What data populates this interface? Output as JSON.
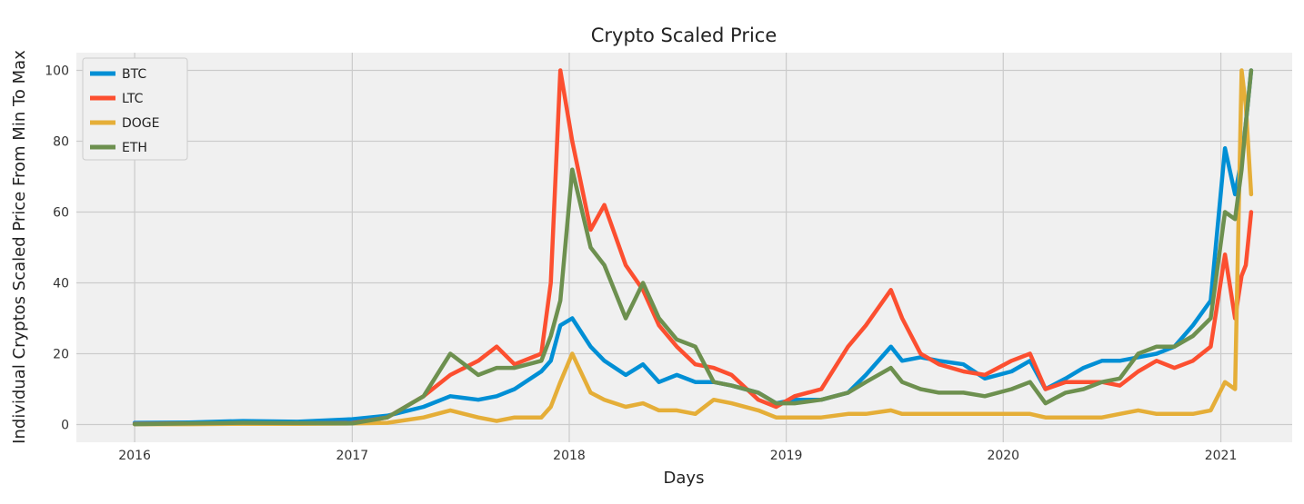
{
  "chart_data": {
    "type": "line",
    "title": "Crypto Scaled Price",
    "xlabel": "Days",
    "ylabel": "Individual Cryptos Scaled Price From Min To Max",
    "x_tick_labels": [
      "2016",
      "2017",
      "2018",
      "2019",
      "2020",
      "2021"
    ],
    "y_ticks": [
      0,
      20,
      40,
      60,
      80,
      100
    ],
    "xlim": [
      "2015-09-25",
      "2021-05-01"
    ],
    "ylim": [
      -5,
      105
    ],
    "grid": true,
    "legend_position": "top-left",
    "x": [
      "2016-01-01",
      "2016-04-01",
      "2016-07-01",
      "2016-10-01",
      "2017-01-01",
      "2017-03-01",
      "2017-05-01",
      "2017-06-15",
      "2017-08-01",
      "2017-09-01",
      "2017-10-01",
      "2017-11-15",
      "2017-12-01",
      "2017-12-17",
      "2018-01-06",
      "2018-02-06",
      "2018-03-01",
      "2018-04-06",
      "2018-05-05",
      "2018-06-01",
      "2018-07-01",
      "2018-08-01",
      "2018-09-01",
      "2018-10-01",
      "2018-11-15",
      "2018-12-15",
      "2019-01-15",
      "2019-03-01",
      "2019-04-15",
      "2019-05-15",
      "2019-06-26",
      "2019-07-15",
      "2019-08-15",
      "2019-09-15",
      "2019-10-26",
      "2019-12-01",
      "2020-01-15",
      "2020-02-15",
      "2020-03-12",
      "2020-04-15",
      "2020-05-15",
      "2020-06-15",
      "2020-07-15",
      "2020-08-15",
      "2020-09-15",
      "2020-10-15",
      "2020-11-15",
      "2020-12-15",
      "2021-01-08",
      "2021-01-25",
      "2021-02-05",
      "2021-02-12",
      "2021-02-21"
    ],
    "series": [
      {
        "name": "BTC",
        "color": "#008fd5",
        "values": [
          0.5,
          0.6,
          1,
          0.8,
          1.5,
          2.5,
          5,
          8,
          7,
          8,
          10,
          15,
          18,
          28,
          30,
          22,
          18,
          14,
          17,
          12,
          14,
          12,
          12,
          11,
          9,
          6,
          7,
          7,
          9,
          14,
          22,
          18,
          19,
          18,
          17,
          13,
          15,
          18,
          10,
          13,
          16,
          18,
          18,
          19,
          20,
          22,
          28,
          35,
          78,
          65,
          75,
          85,
          100
        ]
      },
      {
        "name": "LTC",
        "color": "#fc4f30",
        "values": [
          0.2,
          0.3,
          0.3,
          0.3,
          0.4,
          2,
          8,
          14,
          18,
          22,
          17,
          20,
          40,
          100,
          80,
          55,
          62,
          45,
          38,
          28,
          22,
          17,
          16,
          14,
          7,
          5,
          8,
          10,
          22,
          28,
          38,
          30,
          20,
          17,
          15,
          14,
          18,
          20,
          10,
          12,
          12,
          12,
          11,
          15,
          18,
          16,
          18,
          22,
          48,
          30,
          42,
          45,
          60
        ]
      },
      {
        "name": "DOGE",
        "color": "#e5ae38",
        "values": [
          0.1,
          0.1,
          0.2,
          0.2,
          0.3,
          0.5,
          2,
          4,
          2,
          1,
          2,
          2,
          5,
          12,
          20,
          9,
          7,
          5,
          6,
          4,
          4,
          3,
          7,
          6,
          4,
          2,
          2,
          2,
          3,
          3,
          4,
          3,
          3,
          3,
          3,
          3,
          3,
          3,
          2,
          2,
          2,
          2,
          3,
          4,
          3,
          3,
          3,
          4,
          12,
          10,
          100,
          90,
          65
        ]
      },
      {
        "name": "ETH",
        "color": "#6d904f",
        "values": [
          0.1,
          0.3,
          0.5,
          0.4,
          0.3,
          2,
          8,
          20,
          14,
          16,
          16,
          18,
          25,
          35,
          72,
          50,
          45,
          30,
          40,
          30,
          24,
          22,
          12,
          11,
          9,
          6,
          6,
          7,
          9,
          12,
          16,
          12,
          10,
          9,
          9,
          8,
          10,
          12,
          6,
          9,
          10,
          12,
          13,
          20,
          22,
          22,
          25,
          30,
          60,
          58,
          72,
          85,
          100
        ]
      }
    ]
  }
}
